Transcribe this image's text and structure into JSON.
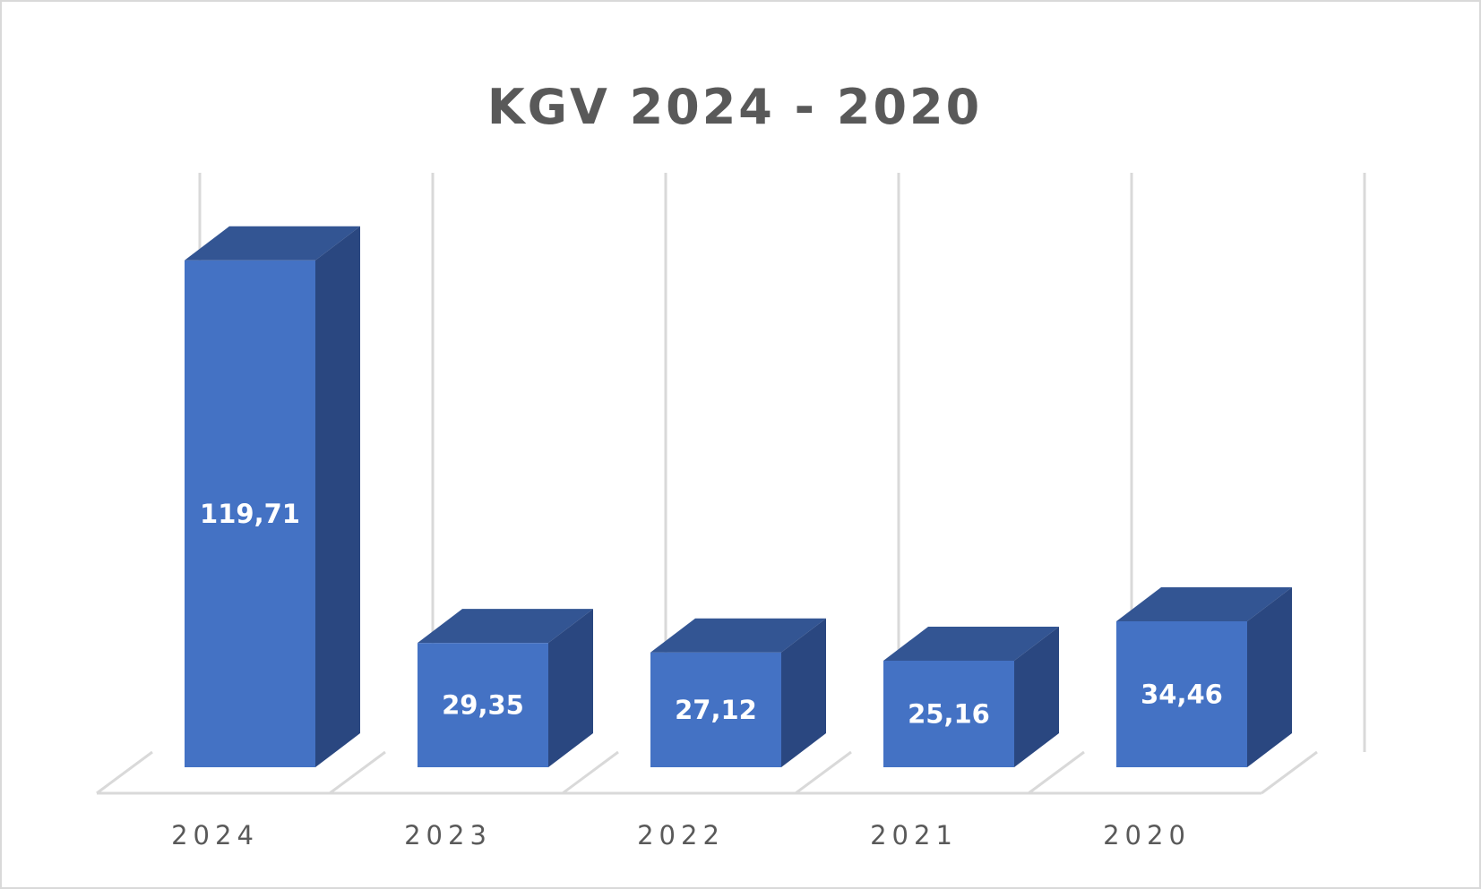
{
  "chart_data": {
    "type": "bar",
    "title": "KGV 2024 - 2020",
    "categories": [
      "2024",
      "2023",
      "2022",
      "2021",
      "2020"
    ],
    "values": [
      119.71,
      29.35,
      27.12,
      25.16,
      34.46
    ],
    "data_labels": [
      "119,71",
      "29,35",
      "27,12",
      "25,16",
      "34,46"
    ],
    "ylim": [
      0,
      130
    ],
    "grid": true,
    "legend": "none",
    "three_d": true,
    "colors": {
      "front": "#4472c4",
      "top": "#335593",
      "side": "#2a4780",
      "grid": "#d9d9d9",
      "text": "#595959",
      "label": "#ffffff"
    }
  }
}
